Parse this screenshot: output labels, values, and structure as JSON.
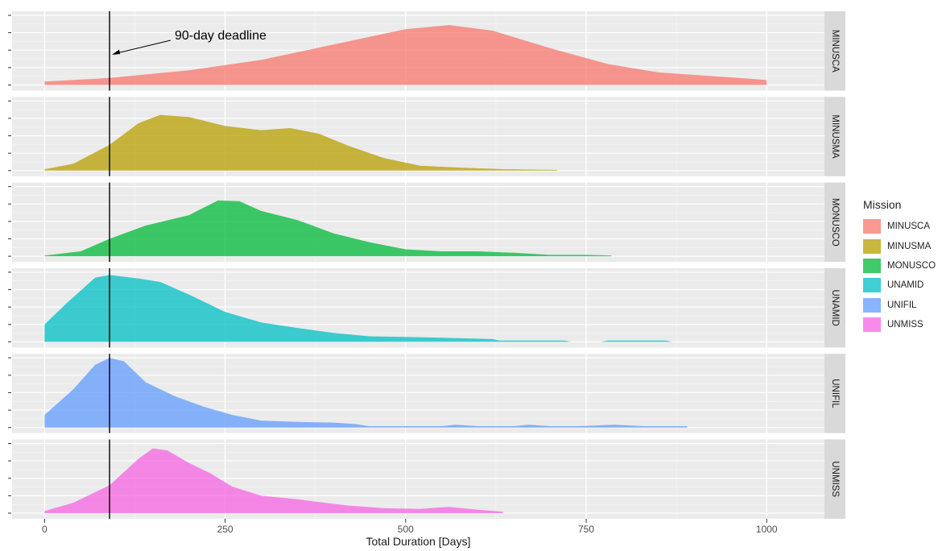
{
  "chart_data": {
    "type": "area",
    "xlabel": "Total Duration [Days]",
    "x_ticks": [
      0,
      250,
      500,
      750,
      1000
    ],
    "xlim": [
      -45,
      1080
    ],
    "legend": {
      "title": "Mission",
      "position": "right"
    },
    "grid": true,
    "reference_line": {
      "x": 90,
      "label": "90-day deadline"
    },
    "series": [
      {
        "name": "MINUSCA",
        "color": "#F8766D",
        "max_days": 1000,
        "points": [
          [
            0,
            0.05
          ],
          [
            90,
            0.1
          ],
          [
            200,
            0.21
          ],
          [
            300,
            0.36
          ],
          [
            400,
            0.58
          ],
          [
            500,
            0.8
          ],
          [
            560,
            0.86
          ],
          [
            620,
            0.78
          ],
          [
            700,
            0.53
          ],
          [
            780,
            0.3
          ],
          [
            850,
            0.18
          ],
          [
            950,
            0.11
          ],
          [
            1000,
            0.07
          ]
        ]
      },
      {
        "name": "MINUSMA",
        "color": "#B79F00",
        "max_days": 710,
        "points": [
          [
            0,
            0.02
          ],
          [
            40,
            0.1
          ],
          [
            90,
            0.37
          ],
          [
            130,
            0.68
          ],
          [
            160,
            0.8
          ],
          [
            200,
            0.77
          ],
          [
            250,
            0.64
          ],
          [
            300,
            0.58
          ],
          [
            340,
            0.61
          ],
          [
            380,
            0.53
          ],
          [
            420,
            0.36
          ],
          [
            470,
            0.18
          ],
          [
            520,
            0.07
          ],
          [
            580,
            0.04
          ],
          [
            640,
            0.02
          ],
          [
            710,
            0.01
          ]
        ]
      },
      {
        "name": "MONUSCO",
        "color": "#00BA38",
        "max_days": 785,
        "points": [
          [
            0,
            0.01
          ],
          [
            50,
            0.07
          ],
          [
            90,
            0.25
          ],
          [
            140,
            0.44
          ],
          [
            200,
            0.59
          ],
          [
            240,
            0.8
          ],
          [
            270,
            0.79
          ],
          [
            300,
            0.65
          ],
          [
            350,
            0.52
          ],
          [
            400,
            0.33
          ],
          [
            450,
            0.2
          ],
          [
            500,
            0.1
          ],
          [
            550,
            0.07
          ],
          [
            600,
            0.07
          ],
          [
            650,
            0.05
          ],
          [
            700,
            0.02
          ],
          [
            750,
            0.02
          ],
          [
            785,
            0.01
          ]
        ]
      },
      {
        "name": "UNAMID",
        "color": "#00BFC4",
        "max_days": 870,
        "points": [
          [
            0,
            0.25
          ],
          [
            30,
            0.55
          ],
          [
            70,
            0.92
          ],
          [
            90,
            0.96
          ],
          [
            130,
            0.91
          ],
          [
            160,
            0.86
          ],
          [
            200,
            0.68
          ],
          [
            250,
            0.43
          ],
          [
            300,
            0.28
          ],
          [
            350,
            0.2
          ],
          [
            400,
            0.13
          ],
          [
            450,
            0.08
          ],
          [
            500,
            0.07
          ],
          [
            550,
            0.06
          ],
          [
            620,
            0.04
          ],
          [
            630,
            0.02
          ],
          [
            720,
            0.02
          ],
          [
            730,
            0
          ],
          [
            770,
            0
          ],
          [
            780,
            0.02
          ],
          [
            860,
            0.02
          ],
          [
            870,
            0
          ]
        ]
      },
      {
        "name": "UNIFIL",
        "color": "#619CFF",
        "max_days": 890,
        "points": [
          [
            0,
            0.18
          ],
          [
            40,
            0.55
          ],
          [
            70,
            0.9
          ],
          [
            90,
            1.0
          ],
          [
            110,
            0.95
          ],
          [
            140,
            0.65
          ],
          [
            180,
            0.45
          ],
          [
            220,
            0.3
          ],
          [
            260,
            0.18
          ],
          [
            300,
            0.1
          ],
          [
            350,
            0.08
          ],
          [
            400,
            0.07
          ],
          [
            430,
            0.05
          ],
          [
            450,
            0.02
          ],
          [
            550,
            0.02
          ],
          [
            570,
            0.04
          ],
          [
            600,
            0.02
          ],
          [
            650,
            0.02
          ],
          [
            670,
            0.04
          ],
          [
            700,
            0.02
          ],
          [
            740,
            0.02
          ],
          [
            790,
            0.04
          ],
          [
            830,
            0.02
          ],
          [
            890,
            0.02
          ]
        ]
      },
      {
        "name": "UNMISS",
        "color": "#F564E3",
        "max_days": 635,
        "points": [
          [
            0,
            0.03
          ],
          [
            40,
            0.15
          ],
          [
            90,
            0.4
          ],
          [
            130,
            0.78
          ],
          [
            150,
            0.93
          ],
          [
            170,
            0.9
          ],
          [
            200,
            0.72
          ],
          [
            230,
            0.57
          ],
          [
            260,
            0.38
          ],
          [
            300,
            0.25
          ],
          [
            350,
            0.2
          ],
          [
            380,
            0.16
          ],
          [
            420,
            0.11
          ],
          [
            470,
            0.07
          ],
          [
            520,
            0.06
          ],
          [
            560,
            0.09
          ],
          [
            600,
            0.05
          ],
          [
            635,
            0.02
          ]
        ]
      }
    ]
  }
}
